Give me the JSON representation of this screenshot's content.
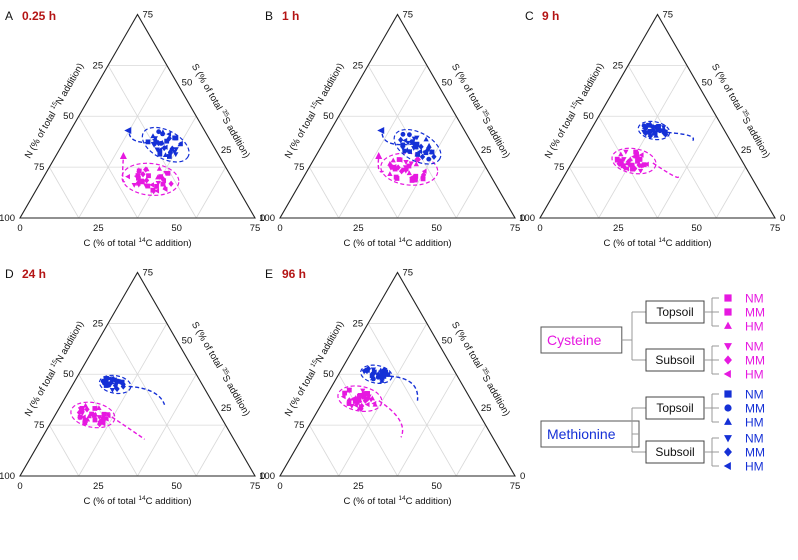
{
  "figure": {
    "legend": {
      "groups": [
        {
          "name": "Cysteine",
          "color": "#e619e0",
          "soils": [
            {
              "name": "Topsoil",
              "rows": [
                {
                  "label": "NM",
                  "shape": "square"
                },
                {
                  "label": "MM",
                  "shape": "square"
                },
                {
                  "label": "HM",
                  "shape": "triangle-up"
                }
              ]
            },
            {
              "name": "Subsoil",
              "rows": [
                {
                  "label": "NM",
                  "shape": "triangle-down"
                },
                {
                  "label": "MM",
                  "shape": "diamond"
                },
                {
                  "label": "HM",
                  "shape": "triangle-left"
                }
              ]
            }
          ]
        },
        {
          "name": "Methionine",
          "color": "#1530d6",
          "soils": [
            {
              "name": "Topsoil",
              "rows": [
                {
                  "label": "NM",
                  "shape": "square"
                },
                {
                  "label": "MM",
                  "shape": "circle"
                },
                {
                  "label": "HM",
                  "shape": "triangle-up"
                }
              ]
            },
            {
              "name": "Subsoil",
              "rows": [
                {
                  "label": "NM",
                  "shape": "triangle-down"
                },
                {
                  "label": "MM",
                  "shape": "diamond"
                },
                {
                  "label": "HM",
                  "shape": "triangle-left"
                }
              ]
            }
          ]
        }
      ]
    }
  },
  "chart_data": [
    {
      "type": "scatter",
      "panel": "A",
      "time": "0.25 h",
      "xlabel": "C (% of total 14C addition)",
      "left_label": "N (% of total 15N addition)",
      "right_label": "S (% of total 35S addition)",
      "ticks_c": [
        0,
        25,
        50,
        75
      ],
      "ticks_n": [
        100,
        75,
        50,
        25
      ],
      "ticks_s": [
        75,
        50,
        25,
        0
      ],
      "series": [
        {
          "name": "Cysteine",
          "color": "#e619e0",
          "centroid": {
            "C": 46,
            "N": 35,
            "S": 19
          },
          "spread": 4.5,
          "points": 36,
          "arrow_end": {
            "C": 29,
            "N": 41,
            "S": 30
          }
        },
        {
          "name": "Methionine",
          "color": "#1530d6",
          "centroid": {
            "C": 44,
            "N": 20,
            "S": 36
          },
          "spread": 4,
          "points": 34,
          "arrow_end": {
            "C": 25,
            "N": 32,
            "S": 43
          }
        }
      ]
    },
    {
      "type": "scatter",
      "panel": "B",
      "time": "1 h",
      "xlabel": "C (% of total 14C addition)",
      "left_label": "N (% of total 15N addition)",
      "right_label": "S (% of total 35S addition)",
      "ticks_c": [
        0,
        25,
        50,
        75
      ],
      "ticks_n": [
        100,
        75,
        50,
        25
      ],
      "ticks_s": [
        75,
        50,
        25,
        0
      ],
      "series": [
        {
          "name": "Cysteine",
          "color": "#e619e0",
          "centroid": {
            "C": 43,
            "N": 33,
            "S": 24
          },
          "spread": 4.5,
          "points": 36,
          "arrow_end": {
            "C": 27,
            "N": 43,
            "S": 30
          }
        },
        {
          "name": "Methionine",
          "color": "#1530d6",
          "centroid": {
            "C": 41,
            "N": 24,
            "S": 35
          },
          "spread": 4,
          "points": 34,
          "arrow_end": {
            "C": 22,
            "N": 35,
            "S": 43
          }
        }
      ]
    },
    {
      "type": "scatter",
      "panel": "C",
      "time": "9 h",
      "xlabel": "C (% of total 14C addition)",
      "left_label": "N (% of total 15N addition)",
      "right_label": "S (% of total 35S addition)",
      "ticks_c": [
        0,
        25,
        50,
        75
      ],
      "ticks_n": [
        100,
        75,
        50,
        25
      ],
      "ticks_s": [
        75,
        50,
        25,
        0
      ],
      "series": [
        {
          "name": "Cysteine",
          "color": "#e619e0",
          "centroid": {
            "C": 26,
            "N": 46,
            "S": 28
          },
          "spread": 3.5,
          "points": 34,
          "arrow_end": {
            "C": 48,
            "N": 31,
            "S": 21
          }
        },
        {
          "name": "Methionine",
          "color": "#1530d6",
          "centroid": {
            "C": 27,
            "N": 30,
            "S": 43
          },
          "spread": 2.5,
          "points": 30,
          "arrow_end": {
            "C": 46,
            "N": 16,
            "S": 38
          }
        }
      ]
    },
    {
      "type": "scatter",
      "panel": "D",
      "time": "24 h",
      "xlabel": "C (% of total 14C addition)",
      "left_label": "N (% of total 15N addition)",
      "right_label": "S (% of total 35S addition)",
      "ticks_c": [
        0,
        25,
        50,
        75
      ],
      "ticks_n": [
        100,
        75,
        50,
        25
      ],
      "ticks_s": [
        75,
        50,
        25,
        0
      ],
      "series": [
        {
          "name": "Cysteine",
          "color": "#e619e0",
          "centroid": {
            "C": 16,
            "N": 54,
            "S": 30
          },
          "spread": 3.5,
          "points": 36,
          "arrow_end": {
            "C": 44,
            "N": 38,
            "S": 18
          }
        },
        {
          "name": "Methionine",
          "color": "#1530d6",
          "centroid": {
            "C": 18,
            "N": 37,
            "S": 45
          },
          "spread": 2.5,
          "points": 30,
          "arrow_end": {
            "C": 44,
            "N": 21,
            "S": 35
          }
        }
      ]
    },
    {
      "type": "scatter",
      "panel": "E",
      "time": "96 h",
      "xlabel": "C (% of total 14C addition)",
      "left_label": "N (% of total 15N addition)",
      "right_label": "S (% of total 35S addition)",
      "ticks_c": [
        0,
        25,
        50,
        75
      ],
      "ticks_n": [
        100,
        75,
        50,
        25
      ],
      "ticks_s": [
        75,
        50,
        25,
        0
      ],
      "series": [
        {
          "name": "Cysteine",
          "color": "#e619e0",
          "centroid": {
            "C": 15,
            "N": 47,
            "S": 38
          },
          "spread": 3.5,
          "points": 36,
          "arrow_end": {
            "C": 42,
            "N": 39,
            "S": 19
          }
        },
        {
          "name": "Methionine",
          "color": "#1530d6",
          "centroid": {
            "C": 16,
            "N": 34,
            "S": 50
          },
          "spread": 2.5,
          "points": 30,
          "arrow_end": {
            "C": 40,
            "N": 23,
            "S": 37
          }
        }
      ]
    }
  ]
}
